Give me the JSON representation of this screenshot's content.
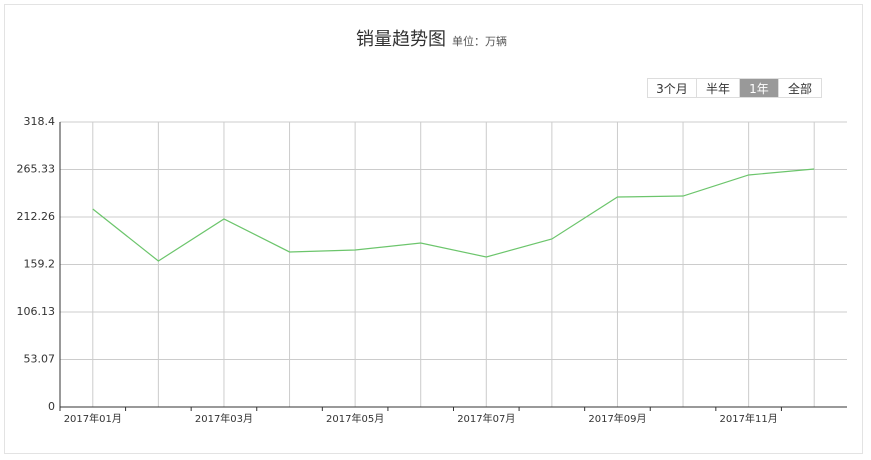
{
  "chart_data": {
    "type": "line",
    "title": "销量趋势图",
    "subtitle": "单位：万辆",
    "buttons": [
      "3个月",
      "半年",
      "1年",
      "全部"
    ],
    "selected_button": 2,
    "categories": [
      "2017年01月",
      null,
      "2017年03月",
      null,
      "2017年05月",
      null,
      "2017年07月",
      null,
      "2017年09月",
      null,
      "2017年11月",
      null
    ],
    "series": [
      {
        "name": "销量",
        "color": "#6cc56c",
        "values": [
          221.2,
          163.1,
          210.1,
          173.2,
          175.4,
          183.2,
          167.6,
          187.7,
          234.6,
          235.7,
          259.2,
          265.9
        ]
      }
    ],
    "ylim": [
      0,
      318.4
    ],
    "yticks": [
      0,
      53.07,
      106.13,
      159.2,
      212.26,
      265.33,
      318.4
    ],
    "grid": true
  }
}
